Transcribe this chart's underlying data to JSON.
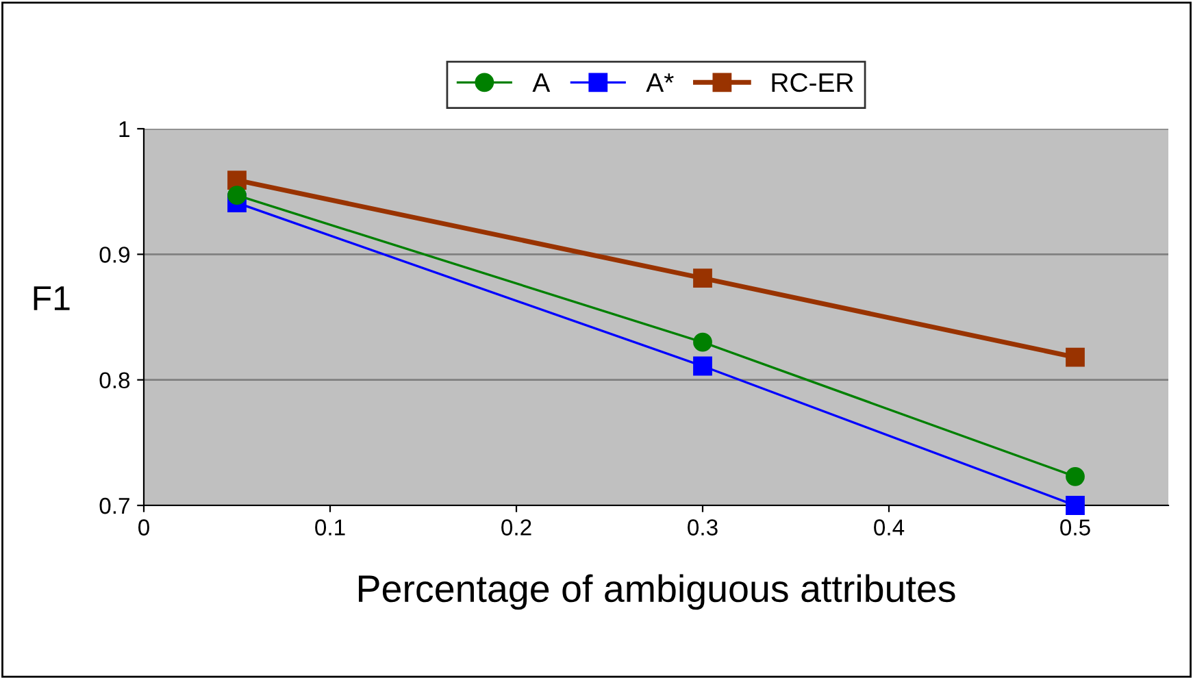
{
  "chart_data": {
    "type": "line",
    "xlabel": "Percentage of ambiguous attributes",
    "ylabel": "F1",
    "x": [
      0.05,
      0.3,
      0.5
    ],
    "series": [
      {
        "name": "A",
        "color": "#008000",
        "values": [
          0.947,
          0.83,
          0.723
        ],
        "marker": "circle"
      },
      {
        "name": "A*",
        "color": "#0000ff",
        "values": [
          0.941,
          0.811,
          0.7
        ],
        "marker": "square"
      },
      {
        "name": "RC-ER",
        "color": "#993300",
        "values": [
          0.959,
          0.881,
          0.818
        ],
        "marker": "square"
      }
    ],
    "xlim": [
      0,
      0.55
    ],
    "xticks": [
      0,
      0.1,
      0.2,
      0.3,
      0.4,
      0.5
    ],
    "ylim": [
      0.7,
      1
    ],
    "yticks": [
      0.7,
      0.8,
      0.9,
      1
    ],
    "grid": "y",
    "legend": "top",
    "line_style": "solid"
  }
}
